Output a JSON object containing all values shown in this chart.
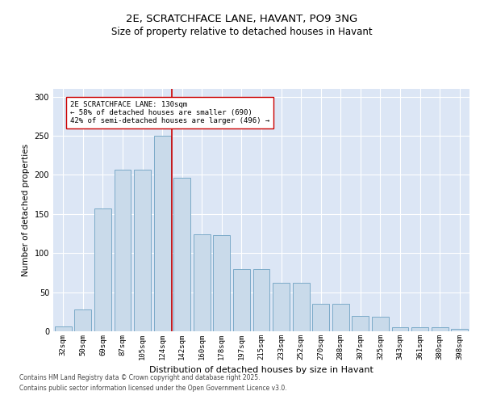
{
  "title1": "2E, SCRATCHFACE LANE, HAVANT, PO9 3NG",
  "title2": "Size of property relative to detached houses in Havant",
  "xlabel": "Distribution of detached houses by size in Havant",
  "ylabel": "Number of detached properties",
  "categories": [
    "32sqm",
    "50sqm",
    "69sqm",
    "87sqm",
    "105sqm",
    "124sqm",
    "142sqm",
    "160sqm",
    "178sqm",
    "197sqm",
    "215sqm",
    "233sqm",
    "252sqm",
    "270sqm",
    "288sqm",
    "307sqm",
    "325sqm",
    "343sqm",
    "361sqm",
    "380sqm",
    "398sqm"
  ],
  "values": [
    6,
    28,
    157,
    207,
    207,
    250,
    196,
    124,
    123,
    80,
    80,
    62,
    62,
    35,
    35,
    20,
    19,
    5,
    5,
    5,
    3
  ],
  "bar_color": "#c9daea",
  "bar_edge_color": "#7baac8",
  "vline_color": "#cc0000",
  "vline_x": 5.5,
  "annotation_text": "2E SCRATCHFACE LANE: 130sqm\n← 58% of detached houses are smaller (690)\n42% of semi-detached houses are larger (496) →",
  "annotation_box_color": "white",
  "annotation_box_edge_color": "#cc0000",
  "ylim": [
    0,
    310
  ],
  "yticks": [
    0,
    50,
    100,
    150,
    200,
    250,
    300
  ],
  "bg_color": "#dce6f5",
  "footer1": "Contains HM Land Registry data © Crown copyright and database right 2025.",
  "footer2": "Contains public sector information licensed under the Open Government Licence v3.0.",
  "title_fontsize": 9.5,
  "subtitle_fontsize": 8.5,
  "tick_fontsize": 6.5,
  "ylabel_fontsize": 7.5,
  "xlabel_fontsize": 8,
  "footer_fontsize": 5.5,
  "annotation_fontsize": 6.5
}
